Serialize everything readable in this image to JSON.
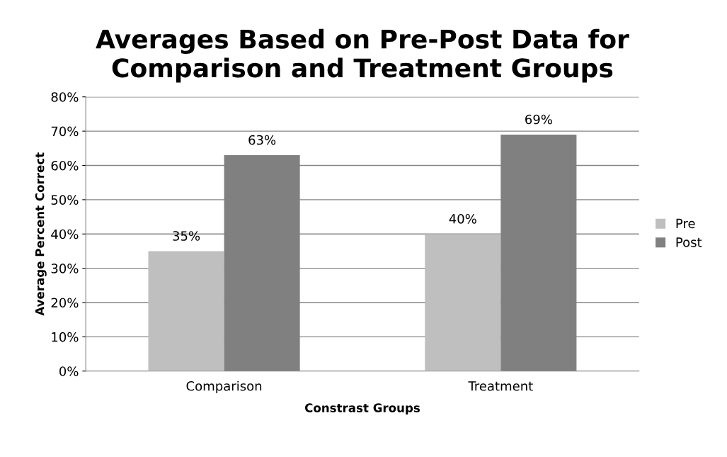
{
  "chart_data": {
    "type": "bar",
    "title": "Averages Based on Pre-Post Data for\nComparison and Treatment Groups",
    "xlabel": "Constrast Groups",
    "ylabel": "Average Percent Correct",
    "categories": [
      "Comparison",
      "Treatment"
    ],
    "series": [
      {
        "name": "Pre",
        "color": "#bfbfbf",
        "values": [
          35,
          40
        ],
        "value_labels": [
          "35%",
          "40%"
        ]
      },
      {
        "name": "Post",
        "color": "#808080",
        "values": [
          63,
          69
        ],
        "value_labels": [
          "63%",
          "69%"
        ]
      }
    ],
    "ylim": [
      0,
      80
    ],
    "yticks": [
      {
        "value": 0,
        "label": "0%"
      },
      {
        "value": 10,
        "label": "10%"
      },
      {
        "value": 20,
        "label": "20%"
      },
      {
        "value": 30,
        "label": "30%"
      },
      {
        "value": 40,
        "label": "40%"
      },
      {
        "value": 50,
        "label": "50%"
      },
      {
        "value": 60,
        "label": "60%"
      },
      {
        "value": 70,
        "label": "70%"
      },
      {
        "value": 80,
        "label": "80%"
      }
    ],
    "grid": "y",
    "legend": "right"
  }
}
